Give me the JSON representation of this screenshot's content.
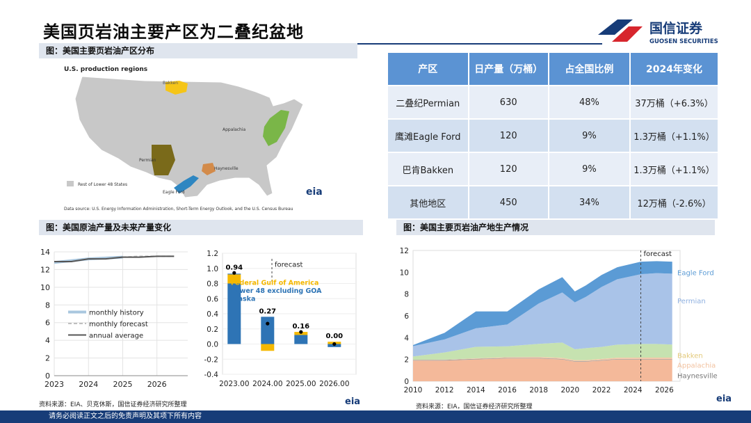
{
  "header": {
    "title": "美国页岩油主要产区为二叠纪盆地",
    "logo_cn": "国信证券",
    "logo_en": "GUOSEN SECURITIES",
    "colors": {
      "navy": "#173c78",
      "red": "#d7262d",
      "blue": "#2a64b8"
    }
  },
  "map_section": {
    "heading": "图：美国主要页岩油产区分布",
    "map_title": "U.S. production regions",
    "regions": [
      "Bakken",
      "Appalachia",
      "Permian",
      "Haynesville",
      "Eagle Ford"
    ],
    "legend": "Rest of Lower 48 States",
    "eia": "eia",
    "source": "Data source: U.S. Energy Information Administration, Short-Term Energy Outlook, and the U.S. Census Bureau"
  },
  "table": {
    "headers": [
      "产区",
      "日产量（万桶）",
      "占全国比例",
      "2024年变化"
    ],
    "rows": [
      [
        "二叠纪Permian",
        "630",
        "48%",
        "37万桶（+6.3%）"
      ],
      [
        "鹰滩Eagle Ford",
        "120",
        "9%",
        "1.3万桶（+1.1%）"
      ],
      [
        "巴肯Bakken",
        "120",
        "9%",
        "1.3万桶（+1.1%）"
      ],
      [
        "其他地区",
        "450",
        "34%",
        "12万桶（-2.6%）"
      ]
    ]
  },
  "crude_section": {
    "heading": "图：美国原油产量及未来产量变化"
  },
  "shale_section": {
    "heading": "图：美国主要页岩油产地生产情况"
  },
  "sources": {
    "left": "资料来源：EIA、贝克休斯，国信证券经济研究所整理",
    "right": "资料来源：EIA，国信证券经济研究所整理"
  },
  "footer": "请务必阅读正文之后的免责声明及其项下所有内容",
  "chart_data": [
    {
      "type": "line",
      "x": [
        2023,
        2023.5,
        2024,
        2024.5,
        2025,
        2025.5,
        2026,
        2026.5
      ],
      "series": [
        {
          "name": "monthly history",
          "values": [
            12.8,
            13.0,
            13.2,
            13.3,
            13.4,
            null,
            null,
            null
          ]
        },
        {
          "name": "monthly forecast",
          "values": [
            null,
            null,
            null,
            null,
            13.4,
            13.5,
            13.5,
            13.5
          ]
        },
        {
          "name": "annual average",
          "values": [
            12.9,
            12.9,
            13.2,
            13.2,
            13.4,
            13.4,
            13.5,
            13.5
          ]
        }
      ],
      "ylim": [
        0,
        14
      ],
      "yticks": [
        "0",
        "2",
        "4",
        "6",
        "8",
        "10",
        "12",
        "14"
      ],
      "xticks": [
        "2023",
        "2024",
        "2025",
        "2026"
      ],
      "legend": "left-center",
      "colors": {
        "history": "#a9c7df",
        "forecast": "#bfbfbf",
        "annual": "#555555"
      }
    },
    {
      "type": "bar",
      "categories": [
        "2023.00",
        "2024.00",
        "2025.00",
        "2026.00"
      ],
      "series": [
        {
          "name": "Federal Gulf of America",
          "values": [
            0.12,
            -0.09,
            0.04,
            0.03
          ]
        },
        {
          "name": "Lower 48 excluding GOA",
          "values": [
            0.8,
            0.36,
            0.12,
            -0.04
          ]
        },
        {
          "name": "Alaska",
          "values": [
            0.01,
            0.0,
            0.0,
            0.0
          ]
        }
      ],
      "totals": [
        0.94,
        0.27,
        0.16,
        0.0
      ],
      "total_labels": [
        "0.94",
        "0.27",
        "0.16",
        "0.00"
      ],
      "annotation": "forecast",
      "ylim": [
        -0.4,
        1.2
      ],
      "yticks": [
        "-0.4",
        "-0.2",
        "0.0",
        "0.2",
        "0.4",
        "0.6",
        "0.8",
        "1.0",
        "1.2"
      ],
      "colors": {
        "gulf": "#f5b800",
        "l48": "#2e74b5",
        "alaska": "#2e74b5"
      }
    },
    {
      "type": "area",
      "x": [
        2010,
        2012,
        2014,
        2016,
        2018,
        2019.5,
        2020.3,
        2021,
        2022,
        2023,
        2024.5,
        2025.5,
        2026.5
      ],
      "series": [
        {
          "name": "Haynesville",
          "values": [
            0.05,
            0.06,
            0.06,
            0.05,
            0.05,
            0.05,
            0.05,
            0.05,
            0.05,
            0.05,
            0.05,
            0.05,
            0.05
          ]
        },
        {
          "name": "Appalachia",
          "values": [
            0.02,
            0.03,
            0.05,
            0.06,
            0.08,
            0.1,
            0.09,
            0.09,
            0.1,
            0.11,
            0.12,
            0.12,
            0.12
          ]
        },
        {
          "name": "Bakken",
          "values": [
            0.3,
            0.65,
            1.05,
            1.0,
            1.2,
            1.4,
            1.0,
            1.1,
            1.1,
            1.2,
            1.25,
            1.25,
            1.2
          ]
        },
        {
          "name": "Permian",
          "values": [
            0.95,
            1.2,
            1.7,
            2.0,
            3.7,
            4.6,
            4.3,
            4.7,
            5.5,
            6.0,
            6.4,
            6.5,
            6.5
          ]
        },
        {
          "name": "Eagle Ford",
          "values": [
            0.1,
            0.6,
            1.55,
            1.2,
            1.3,
            1.4,
            1.0,
            1.05,
            1.1,
            1.1,
            1.15,
            1.1,
            1.1
          ]
        }
      ],
      "base_values": [
        1.9,
        1.9,
        2.0,
        2.1,
        2.1,
        2.0,
        1.8,
        1.8,
        1.9,
        2.0,
        2.0,
        2.0,
        2.0
      ],
      "annotation": "forecast",
      "ylim": [
        0,
        12
      ],
      "yticks": [
        "0",
        "2",
        "4",
        "6",
        "8",
        "10",
        "12"
      ],
      "xticks": [
        "2010",
        "2012",
        "2014",
        "2016",
        "2018",
        "2020",
        "2022",
        "2024",
        "2026"
      ],
      "legend": "right",
      "colors": {
        "base": "#f4b99a",
        "Haynesville": "#9e9e9e",
        "Appalachia": "#f7c9a8",
        "Bakken": "#c6e2b0",
        "Permian": "#a9c3e8",
        "Eagle Ford": "#5b9bd5"
      }
    }
  ]
}
